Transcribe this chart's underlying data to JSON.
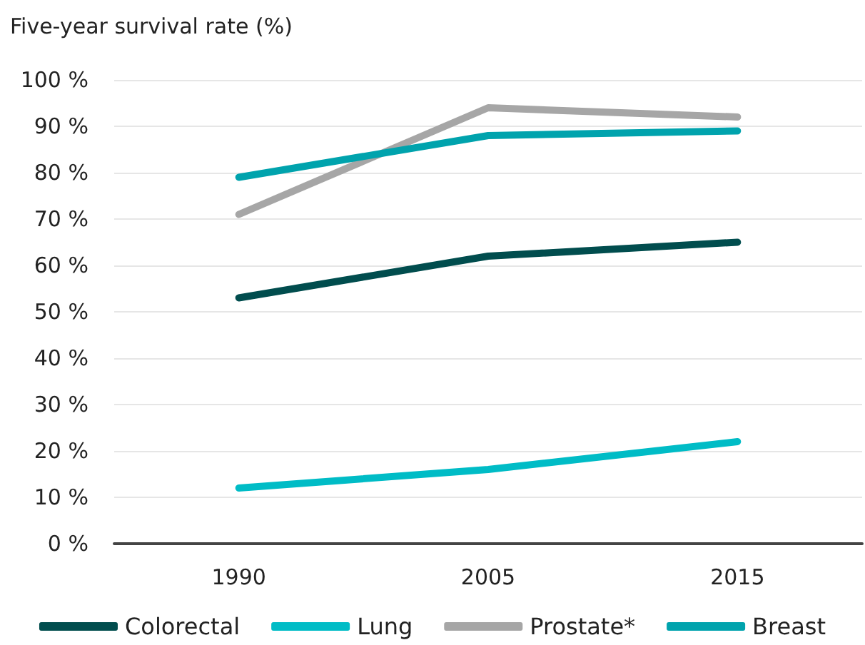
{
  "chart_data": {
    "type": "line",
    "title": "Five-year survival rate (%)",
    "categories": [
      "1990",
      "2005",
      "2015"
    ],
    "series": [
      {
        "name": "Colorectal",
        "color": "#014d4e",
        "values": [
          53,
          62,
          65
        ]
      },
      {
        "name": "Lung",
        "color": "#00bcc6",
        "values": [
          12,
          16,
          22
        ]
      },
      {
        "name": "Prostate*",
        "color": "#a6a6a6",
        "values": [
          71,
          94,
          92
        ]
      },
      {
        "name": "Breast",
        "color": "#00a3ad",
        "values": [
          79,
          88,
          89
        ]
      }
    ],
    "ylim": [
      0,
      100
    ],
    "yticks": [
      {
        "value": 0,
        "label": "0 %"
      },
      {
        "value": 10,
        "label": "10 %"
      },
      {
        "value": 20,
        "label": "20 %"
      },
      {
        "value": 30,
        "label": "30 %"
      },
      {
        "value": 40,
        "label": "40 %"
      },
      {
        "value": 50,
        "label": "50 %"
      },
      {
        "value": 60,
        "label": "60 %"
      },
      {
        "value": 70,
        "label": "70 %"
      },
      {
        "value": 80,
        "label": "80 %"
      },
      {
        "value": 90,
        "label": "90 %"
      },
      {
        "value": 100,
        "label": "100 %"
      }
    ],
    "grid": "y",
    "legend": "bottom",
    "marker": "none",
    "line_style": "solid"
  }
}
